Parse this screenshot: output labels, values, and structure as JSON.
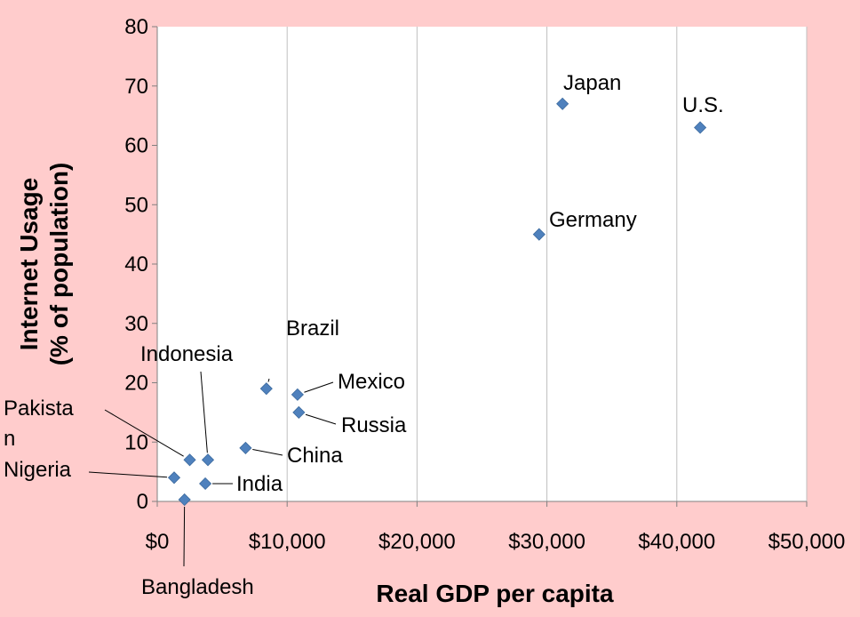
{
  "chart_data": {
    "type": "scatter",
    "title": "",
    "xlabel": "Real GDP per capita",
    "ylabel_lines": [
      "Internet Usage",
      "(% of population)"
    ],
    "xlim": [
      0,
      50000
    ],
    "ylim": [
      0,
      80
    ],
    "x_ticks": [
      "$0",
      "$10,000",
      "$20,000",
      "$30,000",
      "$40,000",
      "$50,000"
    ],
    "y_ticks": [
      "0",
      "10",
      "20",
      "30",
      "40",
      "50",
      "60",
      "70",
      "80"
    ],
    "grid": "vertical",
    "marker_color": "#4f81bd",
    "points": [
      {
        "name": "Japan",
        "x": 31200,
        "y": 67
      },
      {
        "name": "U.S.",
        "x": 41800,
        "y": 63
      },
      {
        "name": "Germany",
        "x": 29400,
        "y": 45
      },
      {
        "name": "Brazil",
        "x": 8400,
        "y": 19
      },
      {
        "name": "Mexico",
        "x": 10800,
        "y": 18
      },
      {
        "name": "Russia",
        "x": 10900,
        "y": 15
      },
      {
        "name": "Indonesia",
        "x": 3900,
        "y": 7
      },
      {
        "name": "Pakista\nn",
        "x": 2500,
        "y": 7
      },
      {
        "name": "China",
        "x": 6800,
        "y": 9
      },
      {
        "name": "Nigeria",
        "x": 1300,
        "y": 4
      },
      {
        "name": "India",
        "x": 3700,
        "y": 3
      },
      {
        "name": "Bangladesh",
        "x": 2100,
        "y": 0.3
      }
    ]
  }
}
